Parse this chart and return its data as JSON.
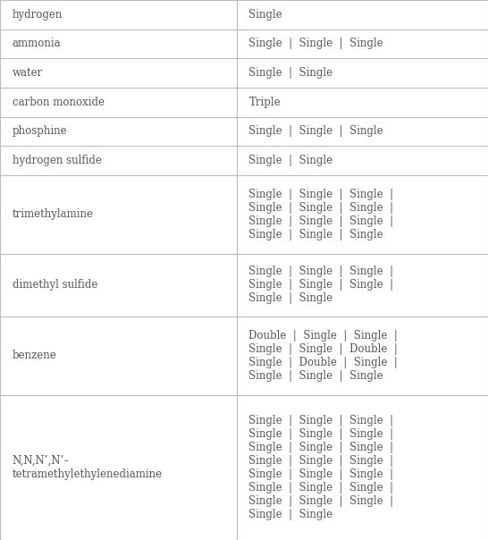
{
  "rows": [
    {
      "name": "hydrogen",
      "bonds": "Single"
    },
    {
      "name": "ammonia",
      "bonds": "Single  |  Single  |  Single"
    },
    {
      "name": "water",
      "bonds": "Single  |  Single"
    },
    {
      "name": "carbon monoxide",
      "bonds": "Triple"
    },
    {
      "name": "phosphine",
      "bonds": "Single  |  Single  |  Single"
    },
    {
      "name": "hydrogen sulfide",
      "bonds": "Single  |  Single"
    },
    {
      "name": "trimethylamine",
      "bonds": "Single  |  Single  |  Single  |\nSingle  |  Single  |  Single  |\nSingle  |  Single  |  Single  |\nSingle  |  Single  |  Single"
    },
    {
      "name": "dimethyl sulfide",
      "bonds": "Single  |  Single  |  Single  |\nSingle  |  Single  |  Single  |\nSingle  |  Single"
    },
    {
      "name": "benzene",
      "bonds": "Double  |  Single  |  Single  |\nSingle  |  Single  |  Double  |\nSingle  |  Double  |  Single  |\nSingle  |  Single  |  Single"
    },
    {
      "name": "N,N,N’,N’–\ntetramethylethylenediamine",
      "bonds": "Single  |  Single  |  Single  |\nSingle  |  Single  |  Single  |\nSingle  |  Single  |  Single  |\nSingle  |  Single  |  Single  |\nSingle  |  Single  |  Single  |\nSingle  |  Single  |  Single  |\nSingle  |  Single  |  Single  |\nSingle  |  Single"
    }
  ],
  "col_split": 0.485,
  "background_color": "#ffffff",
  "line_color": "#bbbbbb",
  "text_color": "#555555",
  "font_size": 8.5,
  "name_font_size": 8.5,
  "fig_width": 5.46,
  "fig_height": 6.04,
  "dpi": 100
}
